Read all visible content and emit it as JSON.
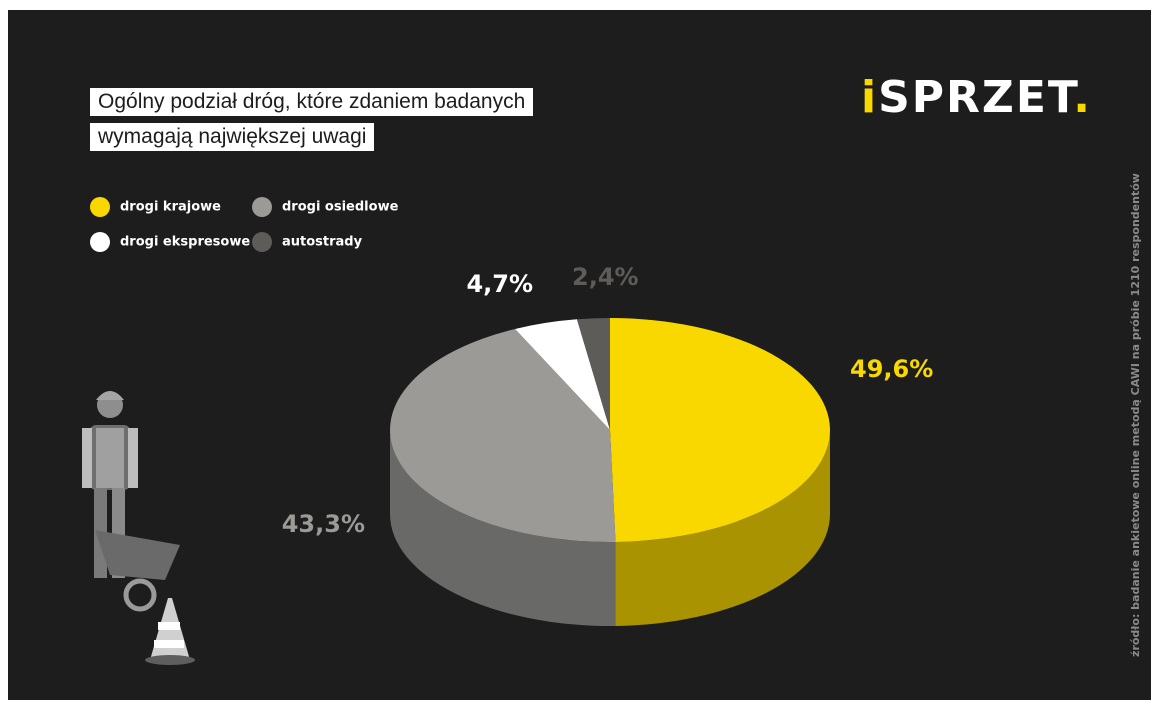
{
  "chart_data": {
    "type": "pie3d",
    "title": [
      "Ogólny podział dróg, które zdaniem badanych",
      "wymagają największej uwagi"
    ],
    "categories": [
      "drogi krajowe",
      "drogi osiedlowe",
      "drogi ekspresowe",
      "autostrady"
    ],
    "values": [
      49.6,
      43.3,
      4.7,
      2.4
    ],
    "value_labels": [
      "49,6%",
      "43,3%",
      "4,7%",
      "2,4%"
    ],
    "colors": [
      "#f9d800",
      "#9b9a97",
      "#ffffff",
      "#5e5c59"
    ],
    "source": "źródło: badanie ankietowe online metodą CAWI na próbie 1210 respondentów"
  },
  "logo": [
    "i",
    "SPRZET",
    "."
  ]
}
